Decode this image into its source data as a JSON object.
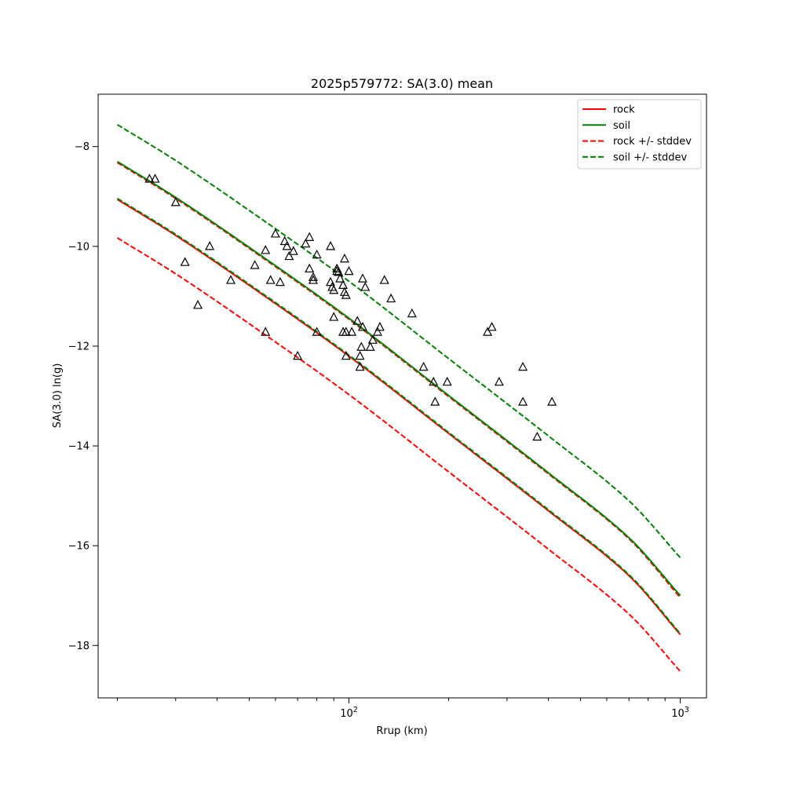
{
  "chart_data": {
    "type": "line",
    "title": "2025p579772: SA(3.0) mean",
    "xlabel": "Rrup (km)",
    "ylabel": "SA(3.0) ln(g)",
    "xscale": "log",
    "xlim": [
      17.5,
      1200
    ],
    "ylim": [
      -19.05,
      -6.95
    ],
    "x_ticks": [
      {
        "value": 100,
        "label": "10",
        "exp": "2"
      },
      {
        "value": 1000,
        "label": "10",
        "exp": "3"
      }
    ],
    "y_ticks": [
      {
        "value": -8,
        "label": "−8"
      },
      {
        "value": -10,
        "label": "−10"
      },
      {
        "value": -12,
        "label": "−12"
      },
      {
        "value": -14,
        "label": "−14"
      },
      {
        "value": -16,
        "label": "−16"
      },
      {
        "value": -18,
        "label": "−18"
      }
    ],
    "grid": false,
    "legend_position": "top-right",
    "legend": [
      {
        "label": "rock",
        "color": "#ff0000",
        "dashed": false
      },
      {
        "label": "soil",
        "color": "#008000",
        "dashed": false
      },
      {
        "label": "rock +/- stddev",
        "color": "#ff0000",
        "dashed": true
      },
      {
        "label": "soil +/- stddev",
        "color": "#008000",
        "dashed": true
      }
    ],
    "series": [
      {
        "name": "rock",
        "color": "#ff0000",
        "dashed": false,
        "x": [
          20,
          30,
          50,
          100,
          200,
          400,
          700,
          1000
        ],
        "y": [
          -9.06,
          -9.78,
          -10.78,
          -12.2,
          -13.75,
          -15.3,
          -16.6,
          -17.78
        ]
      },
      {
        "name": "rock - stddev",
        "color": "#ff0000",
        "dashed": true,
        "x": [
          20,
          30,
          50,
          100,
          200,
          400,
          700,
          1000
        ],
        "y": [
          -9.83,
          -10.55,
          -11.55,
          -12.97,
          -14.52,
          -16.07,
          -17.37,
          -18.52
        ]
      },
      {
        "name": "rock + stddev",
        "color": "#ff0000",
        "dashed": true,
        "x": [
          20,
          30,
          50,
          100,
          200,
          400,
          700,
          1000
        ],
        "y": [
          -8.32,
          -9.04,
          -10.04,
          -11.46,
          -13.01,
          -14.56,
          -15.86,
          -17.04
        ]
      },
      {
        "name": "soil",
        "color": "#008000",
        "dashed": false,
        "x": [
          20,
          30,
          50,
          100,
          200,
          400,
          700,
          1000
        ],
        "y": [
          -8.3,
          -9.02,
          -10.02,
          -11.44,
          -12.99,
          -14.54,
          -15.84,
          -17.0
        ]
      },
      {
        "name": "soil - stddev",
        "color": "#008000",
        "dashed": true,
        "x": [
          20,
          30,
          50,
          100,
          200,
          400,
          700,
          1000
        ],
        "y": [
          -9.04,
          -9.76,
          -10.76,
          -12.18,
          -13.73,
          -15.28,
          -16.58,
          -17.76
        ]
      },
      {
        "name": "soil + stddev",
        "color": "#008000",
        "dashed": true,
        "x": [
          20,
          30,
          50,
          100,
          200,
          400,
          700,
          1000
        ],
        "y": [
          -7.56,
          -8.28,
          -9.28,
          -10.7,
          -12.25,
          -13.8,
          -15.1,
          -16.24
        ]
      }
    ],
    "observations": {
      "marker": "triangle",
      "color": "#000000",
      "points": [
        [
          25.0,
          -8.65
        ],
        [
          26.0,
          -8.65
        ],
        [
          30.0,
          -9.12
        ],
        [
          32.0,
          -10.32
        ],
        [
          35.0,
          -11.18
        ],
        [
          38.0,
          -10.0
        ],
        [
          44.0,
          -10.68
        ],
        [
          52.0,
          -10.38
        ],
        [
          56.0,
          -11.72
        ],
        [
          56.0,
          -10.08
        ],
        [
          58.0,
          -10.68
        ],
        [
          60.0,
          -9.75
        ],
        [
          62.0,
          -10.72
        ],
        [
          64.0,
          -9.9
        ],
        [
          65.0,
          -10.0
        ],
        [
          66.0,
          -10.2
        ],
        [
          68.0,
          -10.1
        ],
        [
          70.0,
          -12.2
        ],
        [
          74.0,
          -9.95
        ],
        [
          76.0,
          -9.82
        ],
        [
          76.0,
          -10.45
        ],
        [
          78.0,
          -10.62
        ],
        [
          78.0,
          -10.68
        ],
        [
          80.0,
          -11.72
        ],
        [
          80.0,
          -10.17
        ],
        [
          88.0,
          -10.0
        ],
        [
          88.0,
          -10.72
        ],
        [
          89.0,
          -10.82
        ],
        [
          90.0,
          -10.88
        ],
        [
          90.0,
          -11.42
        ],
        [
          92.0,
          -10.45
        ],
        [
          92.0,
          -10.5
        ],
        [
          93.0,
          -10.52
        ],
        [
          94.0,
          -10.65
        ],
        [
          96.0,
          -10.78
        ],
        [
          96.0,
          -11.72
        ],
        [
          97.0,
          -10.25
        ],
        [
          97.0,
          -10.92
        ],
        [
          98.0,
          -10.98
        ],
        [
          98.0,
          -11.72
        ],
        [
          98.0,
          -12.2
        ],
        [
          100.0,
          -10.5
        ],
        [
          102.0,
          -11.72
        ],
        [
          106.0,
          -11.5
        ],
        [
          108.0,
          -12.2
        ],
        [
          108.0,
          -12.42
        ],
        [
          109.0,
          -12.02
        ],
        [
          110.0,
          -10.65
        ],
        [
          110.0,
          -11.62
        ],
        [
          112.0,
          -10.82
        ],
        [
          116.0,
          -12.02
        ],
        [
          118.0,
          -11.88
        ],
        [
          122.0,
          -11.72
        ],
        [
          124.0,
          -11.62
        ],
        [
          128.0,
          -10.68
        ],
        [
          134.0,
          -11.05
        ],
        [
          155.0,
          -11.35
        ],
        [
          168.0,
          -12.42
        ],
        [
          180.0,
          -12.72
        ],
        [
          182.0,
          -13.12
        ],
        [
          198.0,
          -12.72
        ],
        [
          262.0,
          -11.72
        ],
        [
          270.0,
          -11.62
        ],
        [
          284.0,
          -12.72
        ],
        [
          335.0,
          -12.42
        ],
        [
          335.0,
          -13.12
        ],
        [
          370.0,
          -13.82
        ],
        [
          410.0,
          -13.12
        ]
      ]
    }
  }
}
